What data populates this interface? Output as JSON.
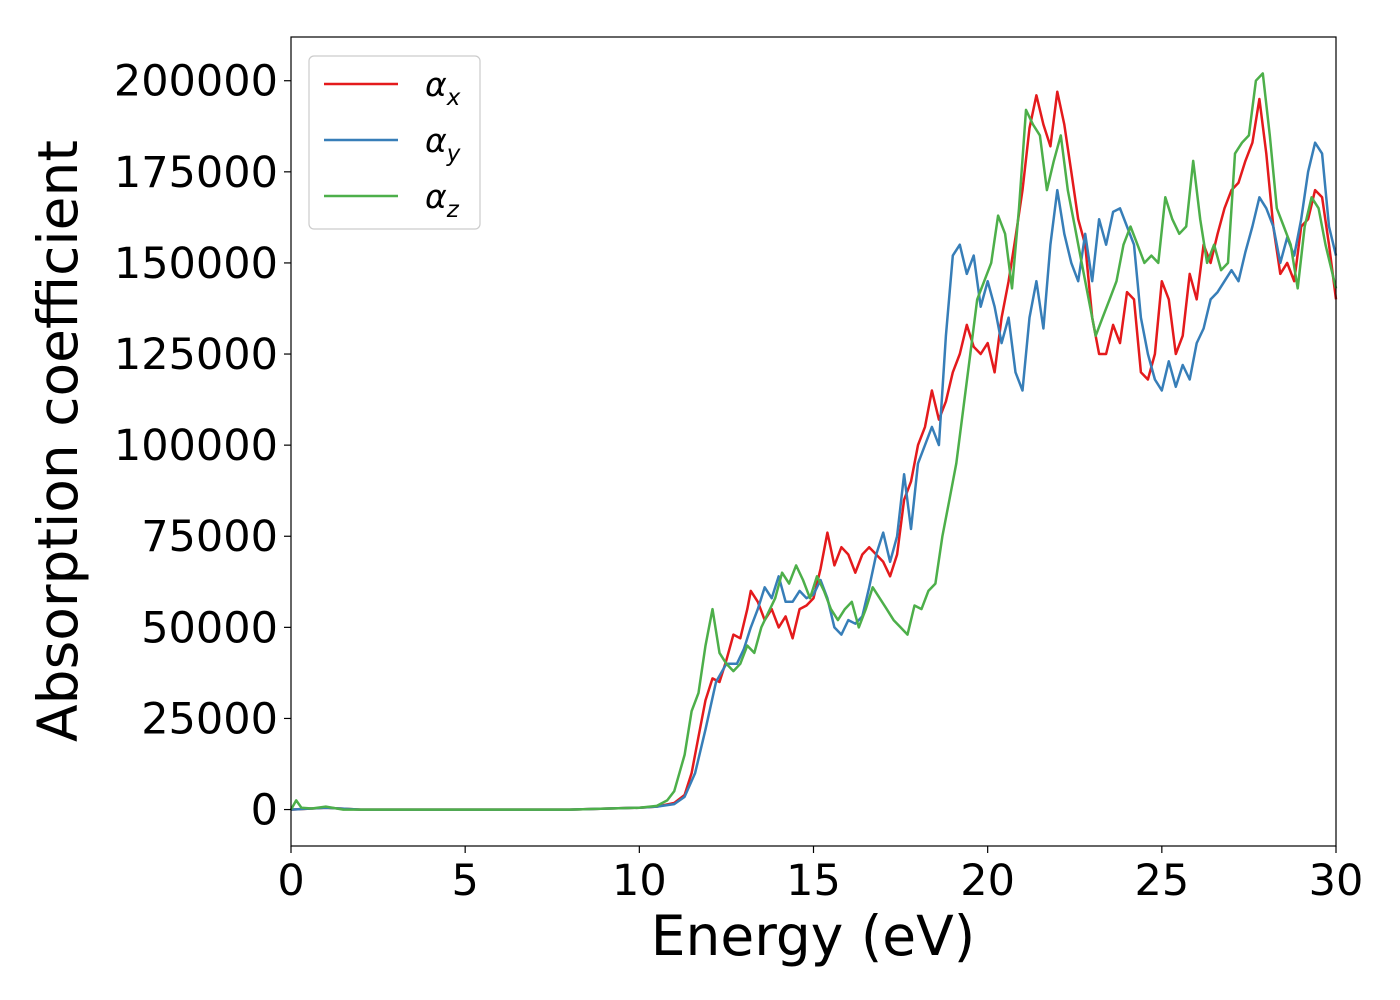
{
  "chart_data": {
    "type": "line",
    "title": "",
    "xlabel": "Energy (eV)",
    "ylabel": "Absorption coefficient",
    "xlim": [
      0,
      30
    ],
    "ylim": [
      -10000,
      212000
    ],
    "xticks": [
      0,
      5,
      10,
      15,
      20,
      25,
      30
    ],
    "yticks": [
      0,
      25000,
      50000,
      75000,
      100000,
      125000,
      150000,
      175000,
      200000
    ],
    "grid": false,
    "legend_position": "top-left",
    "series": [
      {
        "name": "αx",
        "label_base": "α",
        "label_sub": "x",
        "color": "#e41a1c",
        "points": [
          [
            0,
            0
          ],
          [
            1,
            500
          ],
          [
            2,
            0
          ],
          [
            5,
            0
          ],
          [
            8,
            0
          ],
          [
            10,
            500
          ],
          [
            10.5,
            800
          ],
          [
            11,
            1800
          ],
          [
            11.3,
            4000
          ],
          [
            11.5,
            10000
          ],
          [
            11.7,
            20000
          ],
          [
            11.9,
            30000
          ],
          [
            12.1,
            36000
          ],
          [
            12.3,
            35000
          ],
          [
            12.5,
            41000
          ],
          [
            12.7,
            48000
          ],
          [
            12.9,
            47000
          ],
          [
            13.1,
            55000
          ],
          [
            13.2,
            60000
          ],
          [
            13.4,
            57000
          ],
          [
            13.6,
            52000
          ],
          [
            13.8,
            55000
          ],
          [
            14.0,
            50000
          ],
          [
            14.2,
            53000
          ],
          [
            14.4,
            47000
          ],
          [
            14.6,
            55000
          ],
          [
            14.8,
            56000
          ],
          [
            15.0,
            58000
          ],
          [
            15.2,
            66000
          ],
          [
            15.4,
            76000
          ],
          [
            15.6,
            67000
          ],
          [
            15.8,
            72000
          ],
          [
            16.0,
            70000
          ],
          [
            16.2,
            65000
          ],
          [
            16.4,
            70000
          ],
          [
            16.6,
            72000
          ],
          [
            16.8,
            70000
          ],
          [
            17.0,
            68000
          ],
          [
            17.2,
            64000
          ],
          [
            17.4,
            70000
          ],
          [
            17.6,
            85000
          ],
          [
            17.8,
            90000
          ],
          [
            18.0,
            100000
          ],
          [
            18.2,
            105000
          ],
          [
            18.4,
            115000
          ],
          [
            18.6,
            107000
          ],
          [
            18.8,
            112000
          ],
          [
            19.0,
            120000
          ],
          [
            19.2,
            125000
          ],
          [
            19.4,
            133000
          ],
          [
            19.6,
            127000
          ],
          [
            19.8,
            125000
          ],
          [
            20.0,
            128000
          ],
          [
            20.2,
            120000
          ],
          [
            20.4,
            135000
          ],
          [
            20.6,
            145000
          ],
          [
            20.8,
            157000
          ],
          [
            21.0,
            170000
          ],
          [
            21.2,
            187000
          ],
          [
            21.4,
            196000
          ],
          [
            21.6,
            188000
          ],
          [
            21.8,
            182000
          ],
          [
            22.0,
            197000
          ],
          [
            22.2,
            188000
          ],
          [
            22.4,
            175000
          ],
          [
            22.6,
            162000
          ],
          [
            22.8,
            155000
          ],
          [
            23.0,
            135000
          ],
          [
            23.2,
            125000
          ],
          [
            23.4,
            125000
          ],
          [
            23.6,
            133000
          ],
          [
            23.8,
            128000
          ],
          [
            24.0,
            142000
          ],
          [
            24.2,
            140000
          ],
          [
            24.4,
            120000
          ],
          [
            24.6,
            118000
          ],
          [
            24.8,
            125000
          ],
          [
            25.0,
            145000
          ],
          [
            25.2,
            140000
          ],
          [
            25.4,
            125000
          ],
          [
            25.6,
            130000
          ],
          [
            25.8,
            147000
          ],
          [
            26.0,
            140000
          ],
          [
            26.2,
            155000
          ],
          [
            26.4,
            150000
          ],
          [
            26.6,
            158000
          ],
          [
            26.8,
            165000
          ],
          [
            27.0,
            170000
          ],
          [
            27.2,
            172000
          ],
          [
            27.4,
            178000
          ],
          [
            27.6,
            183000
          ],
          [
            27.8,
            195000
          ],
          [
            28.0,
            180000
          ],
          [
            28.2,
            160000
          ],
          [
            28.4,
            147000
          ],
          [
            28.6,
            150000
          ],
          [
            28.8,
            145000
          ],
          [
            29.0,
            160000
          ],
          [
            29.2,
            162000
          ],
          [
            29.4,
            170000
          ],
          [
            29.6,
            168000
          ],
          [
            29.8,
            155000
          ],
          [
            30.0,
            140000
          ]
        ]
      },
      {
        "name": "αy",
        "label_base": "α",
        "label_sub": "y",
        "color": "#377eb8",
        "points": [
          [
            0,
            0
          ],
          [
            1,
            500
          ],
          [
            2,
            0
          ],
          [
            5,
            0
          ],
          [
            8,
            0
          ],
          [
            10,
            500
          ],
          [
            10.5,
            800
          ],
          [
            11,
            1500
          ],
          [
            11.3,
            3500
          ],
          [
            11.6,
            10000
          ],
          [
            11.9,
            22000
          ],
          [
            12.2,
            35000
          ],
          [
            12.5,
            40000
          ],
          [
            12.8,
            40000
          ],
          [
            13.0,
            44000
          ],
          [
            13.2,
            50000
          ],
          [
            13.4,
            55000
          ],
          [
            13.6,
            61000
          ],
          [
            13.8,
            58000
          ],
          [
            14.0,
            64000
          ],
          [
            14.2,
            57000
          ],
          [
            14.4,
            57000
          ],
          [
            14.6,
            60000
          ],
          [
            14.8,
            58000
          ],
          [
            15.0,
            59000
          ],
          [
            15.2,
            63000
          ],
          [
            15.4,
            58000
          ],
          [
            15.6,
            50000
          ],
          [
            15.8,
            48000
          ],
          [
            16.0,
            52000
          ],
          [
            16.2,
            51000
          ],
          [
            16.4,
            53000
          ],
          [
            16.6,
            61000
          ],
          [
            16.8,
            70000
          ],
          [
            17.0,
            76000
          ],
          [
            17.2,
            68000
          ],
          [
            17.4,
            75000
          ],
          [
            17.6,
            92000
          ],
          [
            17.8,
            77000
          ],
          [
            18.0,
            95000
          ],
          [
            18.2,
            100000
          ],
          [
            18.4,
            105000
          ],
          [
            18.6,
            100000
          ],
          [
            18.8,
            130000
          ],
          [
            19.0,
            152000
          ],
          [
            19.2,
            155000
          ],
          [
            19.4,
            147000
          ],
          [
            19.6,
            152000
          ],
          [
            19.8,
            138000
          ],
          [
            20.0,
            145000
          ],
          [
            20.2,
            138000
          ],
          [
            20.4,
            128000
          ],
          [
            20.6,
            135000
          ],
          [
            20.8,
            120000
          ],
          [
            21.0,
            115000
          ],
          [
            21.2,
            135000
          ],
          [
            21.4,
            145000
          ],
          [
            21.6,
            132000
          ],
          [
            21.8,
            155000
          ],
          [
            22.0,
            170000
          ],
          [
            22.2,
            158000
          ],
          [
            22.4,
            150000
          ],
          [
            22.6,
            145000
          ],
          [
            22.8,
            158000
          ],
          [
            23.0,
            145000
          ],
          [
            23.2,
            162000
          ],
          [
            23.4,
            155000
          ],
          [
            23.6,
            164000
          ],
          [
            23.8,
            165000
          ],
          [
            24.0,
            160000
          ],
          [
            24.2,
            155000
          ],
          [
            24.4,
            135000
          ],
          [
            24.6,
            125000
          ],
          [
            24.8,
            118000
          ],
          [
            25.0,
            115000
          ],
          [
            25.2,
            123000
          ],
          [
            25.4,
            116000
          ],
          [
            25.6,
            122000
          ],
          [
            25.8,
            118000
          ],
          [
            26.0,
            128000
          ],
          [
            26.2,
            132000
          ],
          [
            26.4,
            140000
          ],
          [
            26.6,
            142000
          ],
          [
            26.8,
            145000
          ],
          [
            27.0,
            148000
          ],
          [
            27.2,
            145000
          ],
          [
            27.4,
            153000
          ],
          [
            27.6,
            160000
          ],
          [
            27.8,
            168000
          ],
          [
            28.0,
            165000
          ],
          [
            28.2,
            160000
          ],
          [
            28.4,
            150000
          ],
          [
            28.6,
            157000
          ],
          [
            28.8,
            152000
          ],
          [
            29.0,
            162000
          ],
          [
            29.2,
            175000
          ],
          [
            29.4,
            183000
          ],
          [
            29.6,
            180000
          ],
          [
            29.8,
            160000
          ],
          [
            30.0,
            152000
          ]
        ]
      },
      {
        "name": "αz",
        "label_base": "α",
        "label_sub": "z",
        "color": "#4daf4a",
        "points": [
          [
            0,
            0
          ],
          [
            0.15,
            2500
          ],
          [
            0.3,
            500
          ],
          [
            0.6,
            300
          ],
          [
            1,
            800
          ],
          [
            1.5,
            0
          ],
          [
            2,
            0
          ],
          [
            5,
            0
          ],
          [
            8,
            0
          ],
          [
            10,
            500
          ],
          [
            10.5,
            1000
          ],
          [
            10.8,
            2500
          ],
          [
            11.0,
            5000
          ],
          [
            11.3,
            15000
          ],
          [
            11.5,
            27000
          ],
          [
            11.7,
            32000
          ],
          [
            11.9,
            45000
          ],
          [
            12.1,
            55000
          ],
          [
            12.3,
            43000
          ],
          [
            12.5,
            40000
          ],
          [
            12.7,
            38000
          ],
          [
            12.9,
            40000
          ],
          [
            13.1,
            45000
          ],
          [
            13.3,
            43000
          ],
          [
            13.5,
            50000
          ],
          [
            13.7,
            54000
          ],
          [
            13.9,
            58000
          ],
          [
            14.1,
            65000
          ],
          [
            14.3,
            62000
          ],
          [
            14.5,
            67000
          ],
          [
            14.7,
            63000
          ],
          [
            14.9,
            58000
          ],
          [
            15.1,
            64000
          ],
          [
            15.3,
            60000
          ],
          [
            15.5,
            55000
          ],
          [
            15.7,
            52000
          ],
          [
            15.9,
            55000
          ],
          [
            16.1,
            57000
          ],
          [
            16.3,
            50000
          ],
          [
            16.5,
            55000
          ],
          [
            16.7,
            61000
          ],
          [
            16.9,
            58000
          ],
          [
            17.1,
            55000
          ],
          [
            17.3,
            52000
          ],
          [
            17.5,
            50000
          ],
          [
            17.7,
            48000
          ],
          [
            17.9,
            56000
          ],
          [
            18.1,
            55000
          ],
          [
            18.3,
            60000
          ],
          [
            18.5,
            62000
          ],
          [
            18.7,
            75000
          ],
          [
            18.9,
            85000
          ],
          [
            19.1,
            95000
          ],
          [
            19.3,
            110000
          ],
          [
            19.5,
            125000
          ],
          [
            19.7,
            140000
          ],
          [
            19.9,
            145000
          ],
          [
            20.1,
            150000
          ],
          [
            20.3,
            163000
          ],
          [
            20.5,
            158000
          ],
          [
            20.7,
            143000
          ],
          [
            20.9,
            165000
          ],
          [
            21.1,
            192000
          ],
          [
            21.3,
            188000
          ],
          [
            21.5,
            185000
          ],
          [
            21.7,
            170000
          ],
          [
            21.9,
            178000
          ],
          [
            22.1,
            185000
          ],
          [
            22.3,
            170000
          ],
          [
            22.5,
            160000
          ],
          [
            22.7,
            150000
          ],
          [
            22.9,
            140000
          ],
          [
            23.1,
            130000
          ],
          [
            23.3,
            135000
          ],
          [
            23.5,
            140000
          ],
          [
            23.7,
            145000
          ],
          [
            23.9,
            155000
          ],
          [
            24.1,
            160000
          ],
          [
            24.3,
            155000
          ],
          [
            24.5,
            150000
          ],
          [
            24.7,
            152000
          ],
          [
            24.9,
            150000
          ],
          [
            25.1,
            168000
          ],
          [
            25.3,
            162000
          ],
          [
            25.5,
            158000
          ],
          [
            25.7,
            160000
          ],
          [
            25.9,
            178000
          ],
          [
            26.1,
            162000
          ],
          [
            26.3,
            150000
          ],
          [
            26.5,
            155000
          ],
          [
            26.7,
            148000
          ],
          [
            26.9,
            150000
          ],
          [
            27.1,
            180000
          ],
          [
            27.3,
            183000
          ],
          [
            27.5,
            185000
          ],
          [
            27.7,
            200000
          ],
          [
            27.9,
            202000
          ],
          [
            28.1,
            185000
          ],
          [
            28.3,
            165000
          ],
          [
            28.5,
            160000
          ],
          [
            28.7,
            155000
          ],
          [
            28.9,
            143000
          ],
          [
            29.1,
            160000
          ],
          [
            29.3,
            168000
          ],
          [
            29.5,
            165000
          ],
          [
            29.7,
            155000
          ],
          [
            30.0,
            143000
          ]
        ]
      }
    ]
  }
}
